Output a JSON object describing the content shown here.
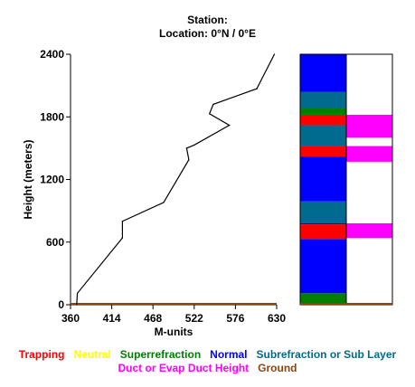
{
  "header": {
    "station_line": "Station:",
    "location_line": "Location:   0°N /   0°E"
  },
  "legend": {
    "row1": [
      {
        "label": "Trapping",
        "color": "#ff0000"
      },
      {
        "label": "Neutral",
        "color": "#ffff00"
      },
      {
        "label": "Superrefraction",
        "color": "#008000"
      },
      {
        "label": "Normal",
        "color": "#0000ff"
      },
      {
        "label": "Subrefraction or Sub Layer",
        "color": "#006b8f"
      }
    ],
    "row2": [
      {
        "label": "Duct or Evap Duct Height",
        "color": "#ff00ff"
      },
      {
        "label": "Ground",
        "color": "#8b4513"
      }
    ]
  },
  "chart_data": {
    "type": "line",
    "xlabel": "M-units",
    "ylabel": "Height (meters)",
    "xlim": [
      360,
      630
    ],
    "ylim": [
      0,
      2400
    ],
    "x_ticks": [
      "360",
      "414",
      "468",
      "522",
      "576",
      "630"
    ],
    "y_ticks": [
      "0",
      "600",
      "1200",
      "1800",
      "2400"
    ],
    "series": [
      {
        "line_color": "#000000",
        "points": [
          {
            "x": 368,
            "y": 0
          },
          {
            "x": 369,
            "y": 110
          },
          {
            "x": 428,
            "y": 640
          },
          {
            "x": 428,
            "y": 800
          },
          {
            "x": 482,
            "y": 980
          },
          {
            "x": 515,
            "y": 1390
          },
          {
            "x": 512,
            "y": 1500
          },
          {
            "x": 522,
            "y": 1530
          },
          {
            "x": 568,
            "y": 1720
          },
          {
            "x": 542,
            "y": 1830
          },
          {
            "x": 547,
            "y": 1920
          },
          {
            "x": 604,
            "y": 2070
          },
          {
            "x": 627,
            "y": 2400
          }
        ]
      }
    ],
    "ground_color": "#8b4513",
    "profile_bar": {
      "description_column": "left",
      "layers": [
        {
          "from": 0,
          "to": 110,
          "class": "Superrefraction",
          "color": "#008000"
        },
        {
          "from": 110,
          "to": 630,
          "class": "Normal",
          "color": "#0000ff"
        },
        {
          "from": 630,
          "to": 770,
          "class": "Trapping",
          "color": "#ff0000"
        },
        {
          "from": 770,
          "to": 780,
          "class": "Normal",
          "color": "#0000ff"
        },
        {
          "from": 780,
          "to": 990,
          "class": "Subrefraction or Sub Layer",
          "color": "#006b8f"
        },
        {
          "from": 990,
          "to": 1420,
          "class": "Normal",
          "color": "#0000ff"
        },
        {
          "from": 1420,
          "to": 1520,
          "class": "Trapping",
          "color": "#ff0000"
        },
        {
          "from": 1520,
          "to": 1720,
          "class": "Subrefraction or Sub Layer",
          "color": "#006b8f"
        },
        {
          "from": 1720,
          "to": 1820,
          "class": "Trapping",
          "color": "#ff0000"
        },
        {
          "from": 1820,
          "to": 1880,
          "class": "Superrefraction",
          "color": "#008000"
        },
        {
          "from": 1880,
          "to": 2040,
          "class": "Subrefraction or Sub Layer",
          "color": "#006b8f"
        },
        {
          "from": 2040,
          "to": 2400,
          "class": "Normal",
          "color": "#0000ff"
        }
      ],
      "ducts": [
        {
          "from": 640,
          "to": 780,
          "color": "#ff00ff"
        },
        {
          "from": 1370,
          "to": 1520,
          "color": "#ff00ff"
        },
        {
          "from": 1600,
          "to": 1820,
          "color": "#ff00ff"
        }
      ]
    }
  }
}
